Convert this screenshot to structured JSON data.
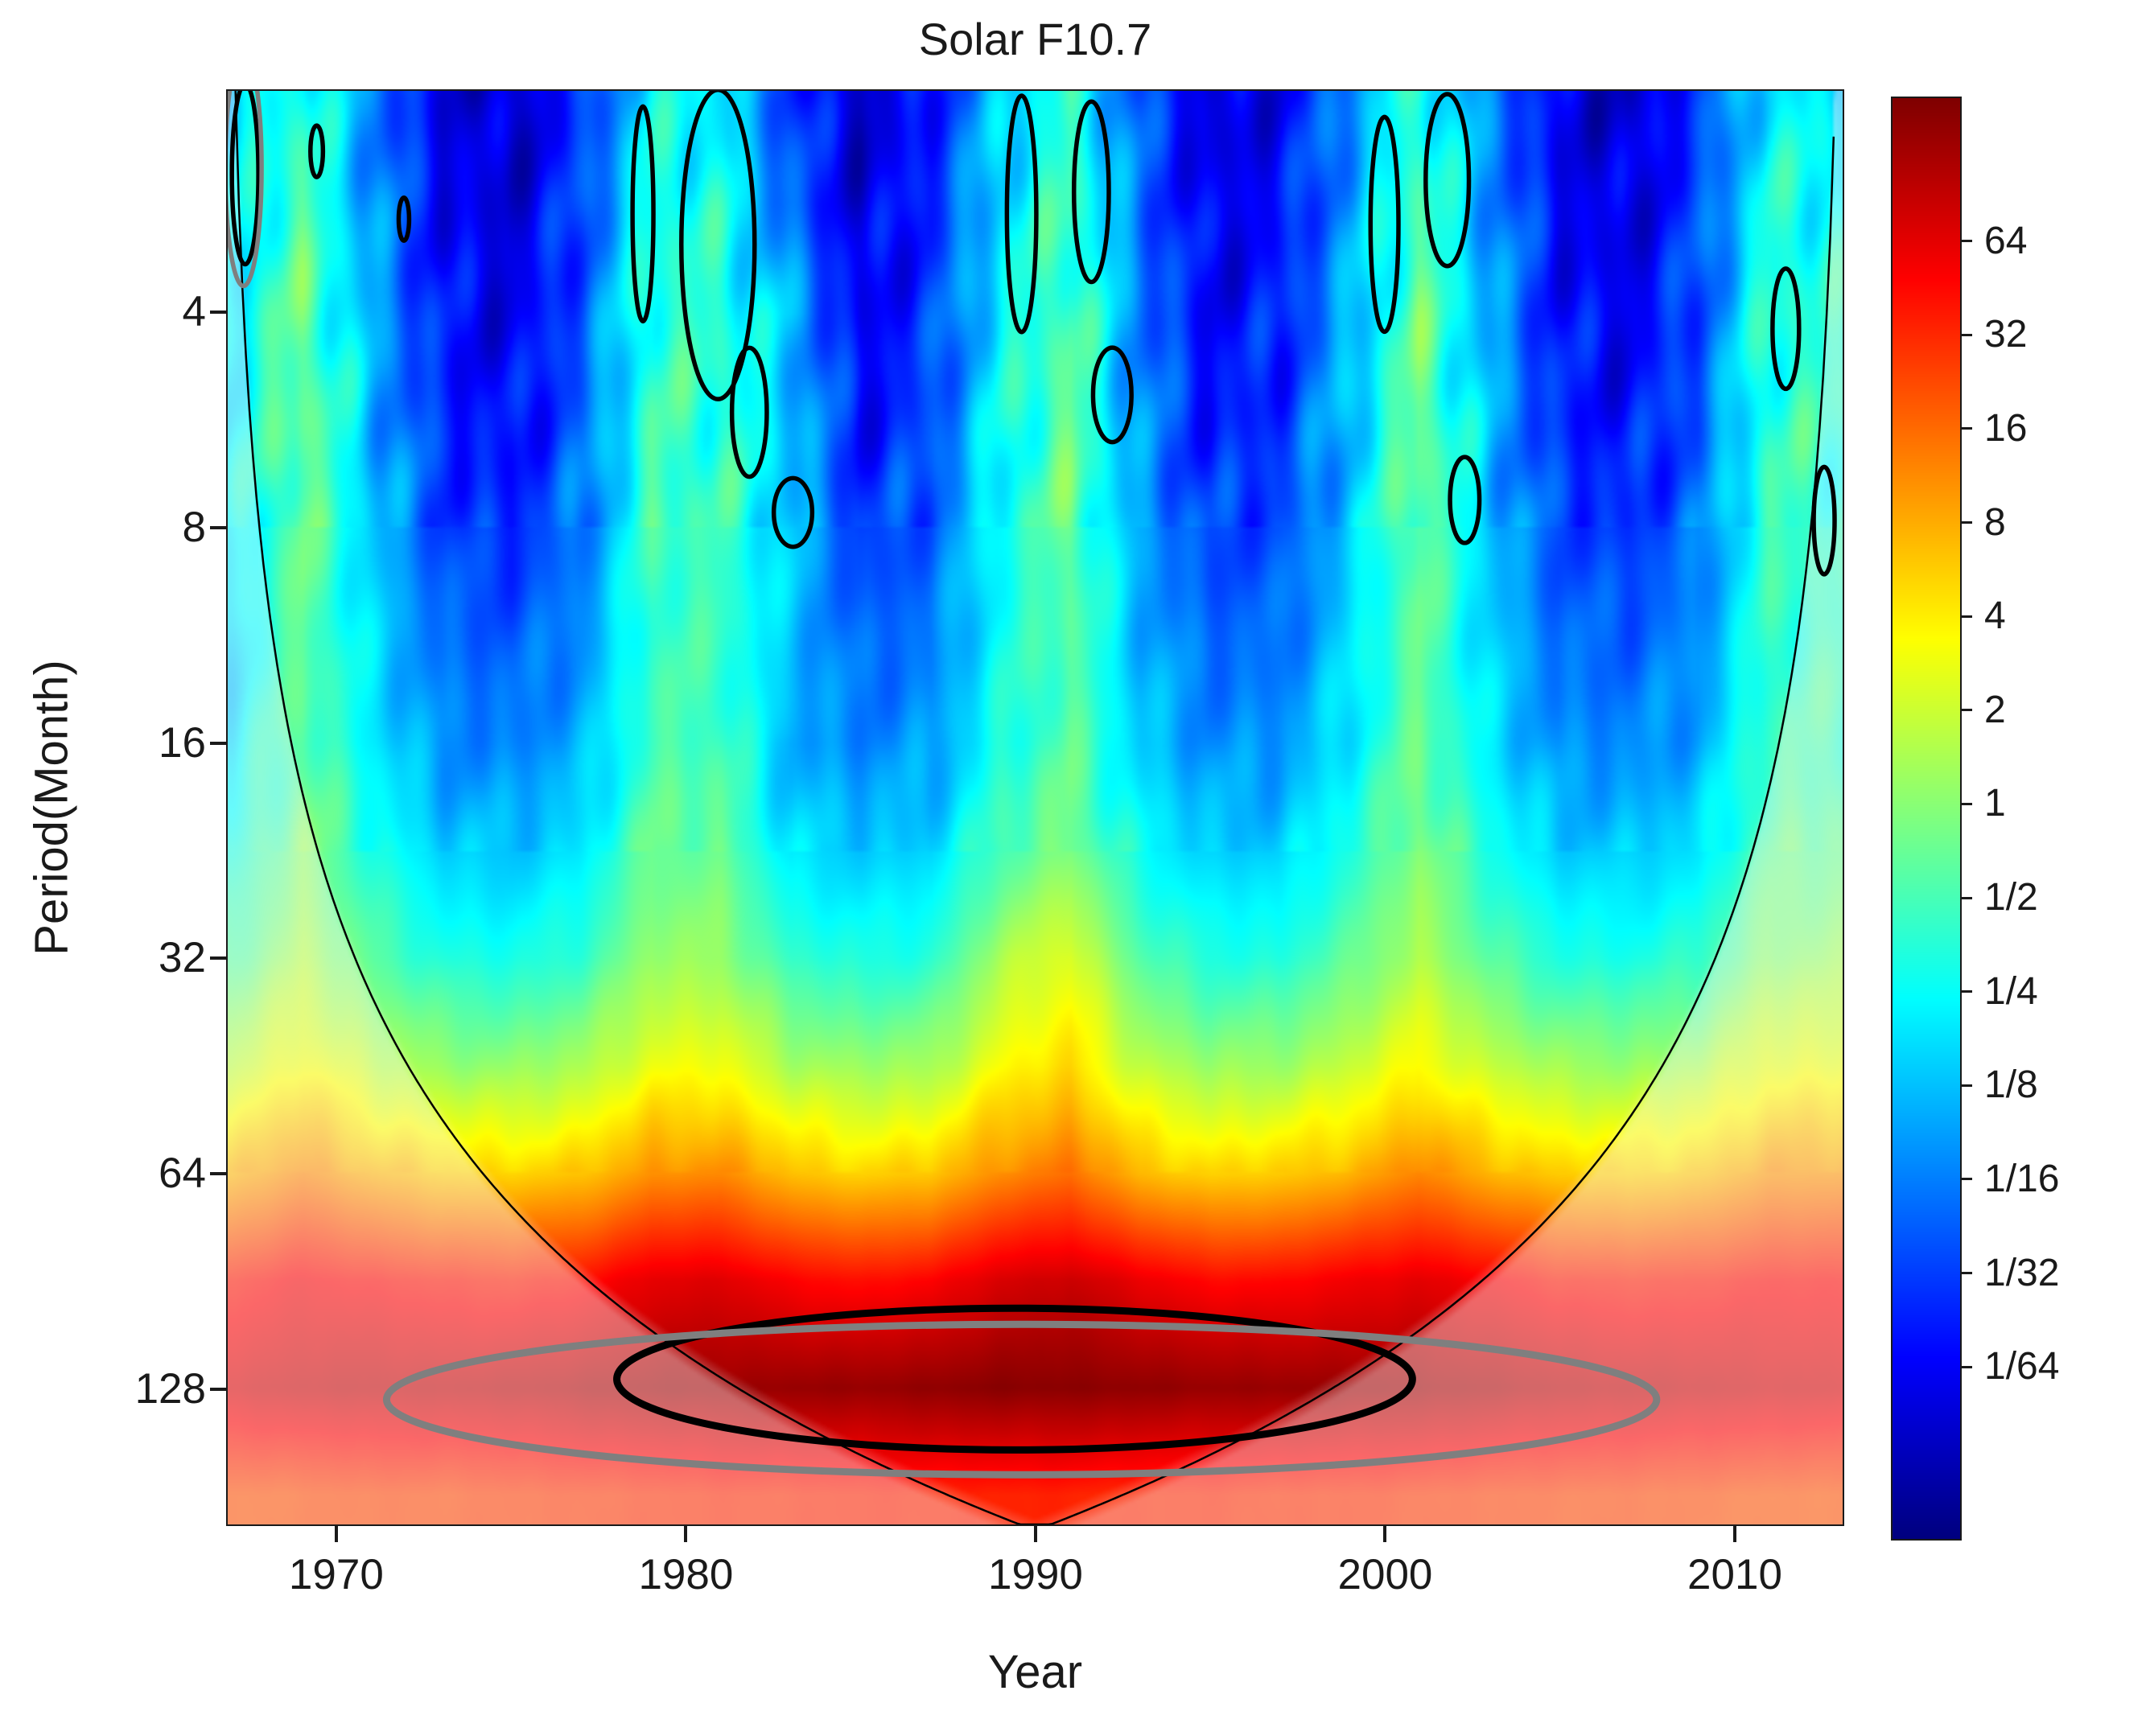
{
  "chart_data": {
    "type": "heatmap",
    "title": "Solar F10.7",
    "xlabel": "Year",
    "ylabel": "Period(Month)",
    "x_ticks": [
      1970,
      1980,
      1990,
      2000,
      2010
    ],
    "y_ticks": [
      4,
      8,
      16,
      32,
      64,
      128
    ],
    "y_scale": "log2",
    "x_range": [
      1966.85,
      2013.13
    ],
    "y_range_months": [
      1.95,
      199
    ],
    "colormap": "jet",
    "colorbar": {
      "labels": [
        "64",
        "32",
        "16",
        "8",
        "4",
        "2",
        "1",
        "1/2",
        "1/4",
        "1/8",
        "1/16",
        "1/32",
        "1/64"
      ],
      "log2_range": [
        -7.85,
        7.54
      ]
    },
    "grid": {
      "years": [
        1967,
        1969,
        1971,
        1973,
        1975,
        1977,
        1979,
        1981,
        1983,
        1985,
        1987,
        1989,
        1991,
        1993,
        1995,
        1997,
        1999,
        2001,
        2003,
        2005,
        2007,
        2009,
        2011,
        2013
      ],
      "periods_months": [
        2,
        2.8,
        4,
        5.7,
        8,
        11.3,
        16,
        22.6,
        32,
        45.3,
        64,
        90.5,
        128,
        181
      ],
      "log2_power": [
        [
          -2.6,
          -1.4,
          -3.9,
          -6.3,
          -6.9,
          -5.2,
          -2.1,
          -2.3,
          -5.0,
          -6.8,
          -5.6,
          -2.9,
          -1.5,
          -4.6,
          -6.6,
          -6.1,
          -3.8,
          -1.4,
          -3.9,
          -6.3,
          -6.8,
          -5.2,
          -2.2,
          -2.4
        ],
        [
          -2.4,
          -0.9,
          -3.6,
          -6.0,
          -6.6,
          -4.9,
          -1.6,
          -1.8,
          -4.5,
          -6.5,
          -5.3,
          -2.5,
          -1.0,
          -4.3,
          -6.3,
          -5.8,
          -3.5,
          -0.9,
          -3.6,
          -6.0,
          -6.5,
          -4.9,
          -1.7,
          -1.9
        ],
        [
          -2.2,
          -0.5,
          -3.3,
          -5.7,
          -6.3,
          -4.6,
          -1.3,
          -1.5,
          -3.1,
          -6.2,
          -5.1,
          -2.2,
          -0.7,
          -4.0,
          -6.0,
          -5.5,
          -3.2,
          -0.5,
          -3.3,
          -5.7,
          -6.2,
          -4.7,
          -1.4,
          -1.6
        ],
        [
          -2.3,
          -0.3,
          -3.1,
          -5.4,
          -5.9,
          -4.4,
          -1.2,
          -1.3,
          -2.9,
          -5.8,
          -4.8,
          -2.0,
          -0.5,
          -3.8,
          -5.6,
          -5.2,
          -3.0,
          -0.3,
          -3.1,
          -5.4,
          -5.8,
          -4.5,
          -1.3,
          -1.4
        ],
        [
          -2.5,
          -0.3,
          -2.9,
          -4.9,
          -5.4,
          -4.1,
          -1.1,
          -1.2,
          -2.8,
          -5.2,
          -4.5,
          -1.9,
          -0.5,
          -3.5,
          -5.0,
          -4.8,
          -2.9,
          -0.3,
          -2.9,
          -4.9,
          -5.2,
          -4.2,
          -1.2,
          -1.2
        ],
        [
          -2.6,
          -0.5,
          -2.6,
          -4.3,
          -4.6,
          -3.8,
          -1.2,
          -1.2,
          -3.0,
          -4.5,
          -4.1,
          -1.9,
          -0.7,
          -3.2,
          -4.4,
          -4.3,
          -2.6,
          -0.5,
          -2.7,
          -4.3,
          -4.5,
          -3.8,
          -1.3,
          -1.2
        ],
        [
          -2.4,
          -0.5,
          -2.3,
          -3.8,
          -4.0,
          -3.3,
          -1.0,
          -1.0,
          -3.3,
          -3.9,
          -3.6,
          -1.7,
          -0.7,
          -2.8,
          -3.8,
          -3.7,
          -2.3,
          -0.5,
          -2.4,
          -3.8,
          -3.9,
          -3.4,
          -1.1,
          -1.0
        ],
        [
          -1.7,
          0.0,
          -1.6,
          -2.8,
          -3.0,
          -2.4,
          -0.5,
          -0.5,
          -2.5,
          -2.9,
          -2.7,
          -1.0,
          -0.1,
          -2.0,
          -2.8,
          -2.8,
          -1.6,
          0.0,
          -1.7,
          -2.8,
          -2.9,
          -2.5,
          -0.6,
          -0.5
        ],
        [
          -0.7,
          0.6,
          -0.7,
          -1.6,
          -1.8,
          -1.3,
          0.2,
          0.2,
          -1.3,
          -1.7,
          -1.5,
          0.5,
          1.4,
          -0.8,
          -1.6,
          -1.6,
          -0.6,
          0.6,
          -0.7,
          -1.6,
          -1.7,
          -1.3,
          0.1,
          0.2
        ],
        [
          0.8,
          1.8,
          0.8,
          0.2,
          0.1,
          0.5,
          1.5,
          1.6,
          0.5,
          0.2,
          0.4,
          1.7,
          2.3,
          0.8,
          0.2,
          0.3,
          0.9,
          1.8,
          0.9,
          0.3,
          0.2,
          0.5,
          1.5,
          1.5
        ],
        [
          2.8,
          3.6,
          2.9,
          2.5,
          2.4,
          2.6,
          3.4,
          3.5,
          2.7,
          2.4,
          2.6,
          3.5,
          3.9,
          2.8,
          2.4,
          2.5,
          2.9,
          3.6,
          2.9,
          2.5,
          2.4,
          2.6,
          3.3,
          3.4
        ],
        [
          5.3,
          5.7,
          5.5,
          5.3,
          5.2,
          5.4,
          6.0,
          6.1,
          5.6,
          5.4,
          5.6,
          6.2,
          6.4,
          5.9,
          5.5,
          5.5,
          5.8,
          6.0,
          5.7,
          5.3,
          5.2,
          5.3,
          5.5,
          5.5
        ],
        [
          6.2,
          6.4,
          6.5,
          6.5,
          6.6,
          6.8,
          7.0,
          7.1,
          7.2,
          7.2,
          7.3,
          7.4,
          7.4,
          7.3,
          7.2,
          7.2,
          7.1,
          7.0,
          6.8,
          6.6,
          6.5,
          6.4,
          6.3,
          6.2
        ],
        [
          4.4,
          4.5,
          4.6,
          4.6,
          4.7,
          4.8,
          4.9,
          5.0,
          5.0,
          5.1,
          5.1,
          5.1,
          5.1,
          5.0,
          5.0,
          4.9,
          4.9,
          4.8,
          4.7,
          4.6,
          4.6,
          4.5,
          4.4,
          4.4
        ]
      ]
    },
    "coi": {
      "slope_months_per_year": 8.77,
      "fade_opacity": 0.42,
      "line_color": "#000000"
    },
    "contours": {
      "significant_color": "#000000",
      "outer_color": "#7f7f7f",
      "blobs": [
        {
          "year": 1967.35,
          "period": 2.55,
          "rx_years": 0.38,
          "ry_octaves": 0.42,
          "color": "#000000"
        },
        {
          "year": 1967.3,
          "period": 2.5,
          "rx_years": 0.52,
          "ry_octaves": 0.55,
          "color": "#7f7f7f"
        },
        {
          "year": 1969.4,
          "period": 2.37,
          "rx_years": 0.18,
          "ry_octaves": 0.12,
          "color": "#000000"
        },
        {
          "year": 1971.9,
          "period": 2.95,
          "rx_years": 0.15,
          "ry_octaves": 0.1,
          "color": "#000000"
        },
        {
          "year": 1978.75,
          "period": 2.9,
          "rx_years": 0.3,
          "ry_octaves": 0.5,
          "color": "#000000"
        },
        {
          "year": 1980.9,
          "period": 3.2,
          "rx_years": 1.05,
          "ry_octaves": 0.72,
          "color": "#000000"
        },
        {
          "year": 1981.8,
          "period": 5.5,
          "rx_years": 0.5,
          "ry_octaves": 0.3,
          "color": "#000000"
        },
        {
          "year": 1983.05,
          "period": 7.6,
          "rx_years": 0.55,
          "ry_octaves": 0.16,
          "color": "#000000"
        },
        {
          "year": 1989.6,
          "period": 2.9,
          "rx_years": 0.42,
          "ry_octaves": 0.55,
          "color": "#000000"
        },
        {
          "year": 1991.6,
          "period": 2.7,
          "rx_years": 0.5,
          "ry_octaves": 0.42,
          "color": "#000000"
        },
        {
          "year": 1992.2,
          "period": 5.2,
          "rx_years": 0.55,
          "ry_octaves": 0.22,
          "color": "#000000"
        },
        {
          "year": 2000.0,
          "period": 3.0,
          "rx_years": 0.4,
          "ry_octaves": 0.5,
          "color": "#000000"
        },
        {
          "year": 2001.8,
          "period": 2.6,
          "rx_years": 0.62,
          "ry_octaves": 0.4,
          "color": "#000000"
        },
        {
          "year": 2002.3,
          "period": 7.3,
          "rx_years": 0.42,
          "ry_octaves": 0.2,
          "color": "#000000"
        },
        {
          "year": 2011.5,
          "period": 4.2,
          "rx_years": 0.38,
          "ry_octaves": 0.28,
          "color": "#000000"
        },
        {
          "year": 2012.6,
          "period": 7.8,
          "rx_years": 0.3,
          "ry_octaves": 0.25,
          "color": "#000000"
        }
      ],
      "main_significance": {
        "year": 1989.4,
        "period": 124.5,
        "rx_years": 11.4,
        "ry_octaves": 0.33,
        "color": "#000000"
      },
      "outer_ellipse": {
        "year": 1989.6,
        "period": 133.0,
        "rx_years": 18.2,
        "ry_octaves": 0.35,
        "color": "#7f7f7f"
      }
    }
  }
}
